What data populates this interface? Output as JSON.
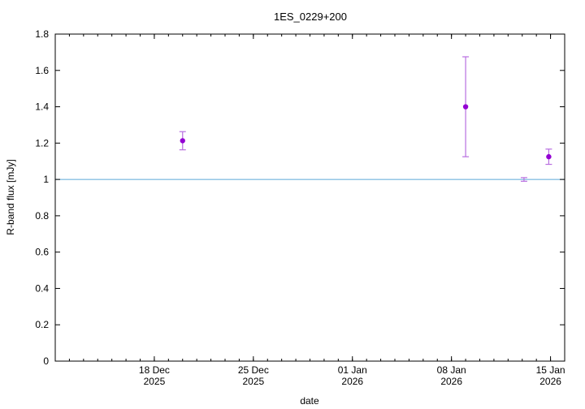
{
  "chart_data": {
    "type": "scatter",
    "title": "1ES_0229+200",
    "xlabel": "date",
    "ylabel": "R-band flux [mJy]",
    "xlim": [
      "2025-12-11",
      "2026-01-16"
    ],
    "ylim": [
      0,
      1.8
    ],
    "y_ticks": [
      "0",
      "0.2",
      "0.4",
      "0.6",
      "0.8",
      "1",
      "1.2",
      "1.4",
      "1.6",
      "1.8"
    ],
    "x_ticks": [
      {
        "date": "2025-12-18",
        "label_day": "18 Dec",
        "label_year": "2025"
      },
      {
        "date": "2025-12-25",
        "label_day": "25 Dec",
        "label_year": "2025"
      },
      {
        "date": "2026-01-01",
        "label_day": "01 Jan",
        "label_year": "2026"
      },
      {
        "date": "2026-01-08",
        "label_day": "08 Jan",
        "label_year": "2026"
      },
      {
        "date": "2026-01-15",
        "label_day": "15 Jan",
        "label_year": "2026"
      }
    ],
    "x_minor_step_days": 1,
    "grid": false,
    "reference_line": {
      "y": 1.0,
      "color": "#5aa9d6"
    },
    "marker_color": "#9400d3",
    "errorbar_color": "#b86ee0",
    "points": [
      {
        "date": "2025-12-20",
        "hour": 0,
        "y": 1.213,
        "err_low": 0.05,
        "err_high": 0.05,
        "marker": true
      },
      {
        "date": "2026-01-09",
        "hour": 0,
        "y": 1.4,
        "err_low": 0.275,
        "err_high": 0.275,
        "marker": true
      },
      {
        "date": "2026-01-13",
        "hour": 3,
        "y": 1.0,
        "err_low": 0.01,
        "err_high": 0.01,
        "marker": false
      },
      {
        "date": "2026-01-14",
        "hour": 21,
        "y": 1.125,
        "err_low": 0.042,
        "err_high": 0.042,
        "marker": true
      }
    ]
  }
}
